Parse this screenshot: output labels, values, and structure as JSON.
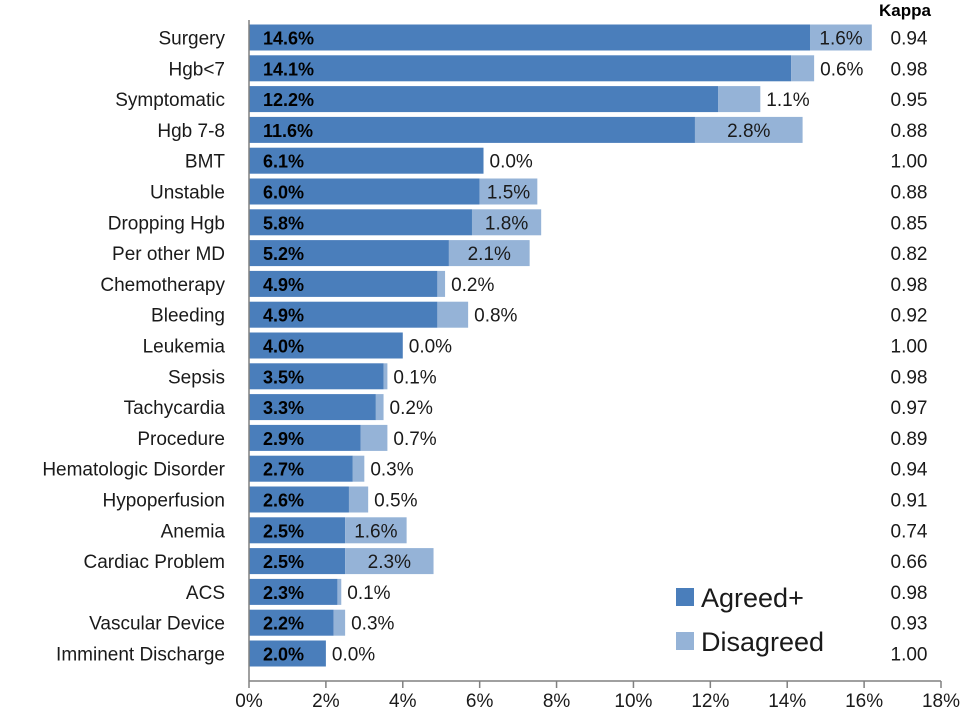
{
  "colors": {
    "agreed": "#4a7ebb",
    "disagreed": "#95b3d7",
    "axis": "#808080",
    "text": "#1a1a1a"
  },
  "chart_data": {
    "type": "bar",
    "orientation": "horizontal",
    "stacked": true,
    "categories": [
      "Surgery",
      "Hgb<7",
      "Symptomatic",
      "Hgb 7-8",
      "BMT",
      "Unstable",
      "Dropping Hgb",
      "Per other MD",
      "Chemotherapy",
      "Bleeding",
      "Leukemia",
      "Sepsis",
      "Tachycardia",
      "Procedure",
      "Hematologic Disorder",
      "Hypoperfusion",
      "Anemia",
      "Cardiac Problem",
      "ACS",
      "Vascular Device",
      "Imminent Discharge"
    ],
    "series": [
      {
        "name": "Agreed+",
        "values": [
          14.6,
          14.1,
          12.2,
          11.6,
          6.1,
          6.0,
          5.8,
          5.2,
          4.9,
          4.9,
          4.0,
          3.5,
          3.3,
          2.9,
          2.7,
          2.6,
          2.5,
          2.5,
          2.3,
          2.2,
          2.0
        ]
      },
      {
        "name": "Disagreed",
        "values": [
          1.6,
          0.6,
          1.1,
          2.8,
          0.0,
          1.5,
          1.8,
          2.1,
          0.2,
          0.8,
          0.0,
          0.1,
          0.2,
          0.7,
          0.3,
          0.5,
          1.6,
          2.3,
          0.1,
          0.3,
          0.0
        ]
      }
    ],
    "agreed_labels": [
      "14.6%",
      "14.1%",
      "12.2%",
      "11.6%",
      "6.1%",
      "6.0%",
      "5.8%",
      "5.2%",
      "4.9%",
      "4.9%",
      "4.0%",
      "3.5%",
      "3.3%",
      "2.9%",
      "2.7%",
      "2.6%",
      "2.5%",
      "2.5%",
      "2.3%",
      "2.2%",
      "2.0%"
    ],
    "disagreed_labels": [
      "1.6%",
      "0.6%",
      "1.1%",
      "2.8%",
      "0.0%",
      "1.5%",
      "1.8%",
      "2.1%",
      "0.2%",
      "0.8%",
      "0.0%",
      "0.1%",
      "0.2%",
      "0.7%",
      "0.3%",
      "0.5%",
      "1.6%",
      "2.3%",
      "0.1%",
      "0.3%",
      "0.0%"
    ],
    "kappa_header": "Kappa",
    "kappa": [
      "0.94",
      "0.98",
      "0.95",
      "0.88",
      "1.00",
      "0.88",
      "0.85",
      "0.82",
      "0.98",
      "0.92",
      "1.00",
      "0.98",
      "0.97",
      "0.89",
      "0.94",
      "0.91",
      "0.74",
      "0.66",
      "0.98",
      "0.93",
      "1.00"
    ],
    "xlim": [
      0,
      18
    ],
    "xticks": [
      "0%",
      "2%",
      "4%",
      "6%",
      "8%",
      "10%",
      "12%",
      "14%",
      "16%",
      "18%"
    ],
    "grid": false,
    "legend_position": "bottom-right",
    "legend": [
      "Agreed+",
      "Disagreed"
    ]
  }
}
